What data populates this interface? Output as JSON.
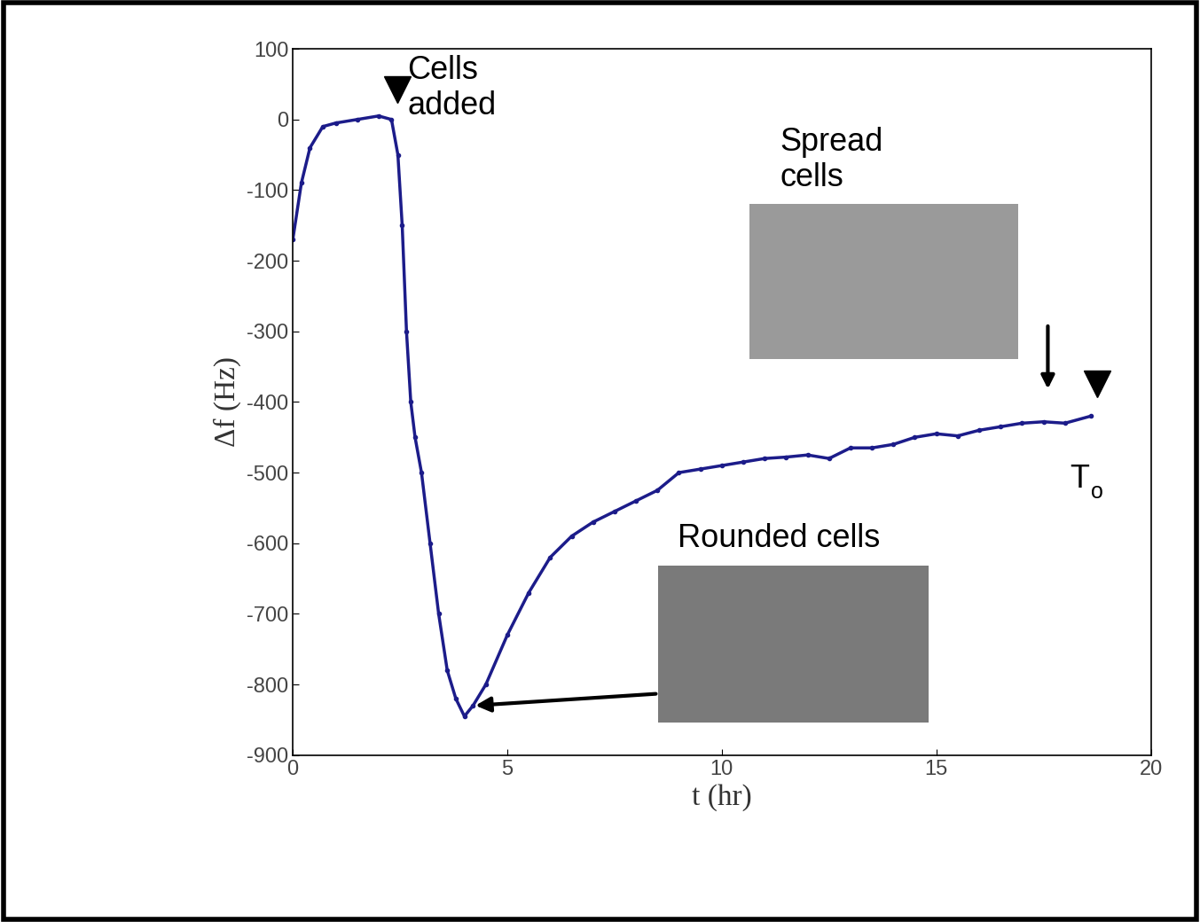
{
  "chart_data": {
    "type": "line",
    "x_label": "t (hr)",
    "y_label": "Δf (Hz)",
    "x": [
      0,
      0.2,
      0.4,
      0.7,
      1.0,
      1.5,
      2.0,
      2.3,
      2.45,
      2.55,
      2.65,
      2.75,
      2.85,
      3.0,
      3.2,
      3.4,
      3.6,
      3.8,
      4.0,
      4.2,
      4.5,
      5.0,
      5.5,
      6.0,
      6.5,
      7.0,
      7.5,
      8.0,
      8.5,
      9.0,
      9.5,
      10.0,
      10.5,
      11.0,
      11.5,
      12.0,
      12.5,
      13.0,
      13.5,
      14.0,
      14.5,
      15.0,
      15.5,
      16.0,
      16.5,
      17.0,
      17.5,
      18.0,
      18.6
    ],
    "values": [
      -170,
      -90,
      -40,
      -10,
      -5,
      0,
      5,
      0,
      -50,
      -150,
      -300,
      -400,
      -450,
      -500,
      -600,
      -700,
      -780,
      -820,
      -845,
      -830,
      -800,
      -730,
      -670,
      -620,
      -590,
      -570,
      -555,
      -540,
      -525,
      -500,
      -495,
      -490,
      -485,
      -480,
      -478,
      -475,
      -480,
      -465,
      -465,
      -460,
      -450,
      -445,
      -448,
      -440,
      -435,
      -430,
      -428,
      -430,
      -420
    ],
    "color": "#1c1c8a",
    "marker": "o",
    "line_style": "solid",
    "xlim": [
      0,
      20
    ],
    "xticks": [
      0,
      5,
      10,
      15,
      20
    ],
    "ylim": [
      -900,
      100
    ],
    "yticks": [
      -900,
      -800,
      -700,
      -600,
      -500,
      -400,
      -300,
      -200,
      -100,
      0,
      100
    ],
    "grid": false,
    "annotations": [
      {
        "text": "Cells\nadded",
        "x": 2.44,
        "y": 43,
        "marker": "v"
      },
      {
        "text": "Rounded cells",
        "x": 4.2,
        "y": -830,
        "marker": "arrow"
      },
      {
        "text": "Spread\ncells",
        "x": 17.6,
        "y": -385,
        "marker": "arrow"
      },
      {
        "text": "T",
        "subscript": "o",
        "x": 18.74,
        "y": -374,
        "marker": "v"
      }
    ]
  }
}
